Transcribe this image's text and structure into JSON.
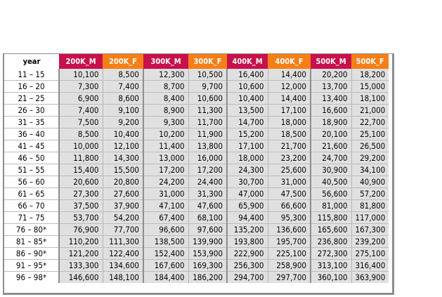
{
  "table": {
    "columns": [
      "year",
      "200K_M",
      "200K_F",
      "300K_M",
      "300K_F",
      "400K_M",
      "400K_F",
      "500K_M",
      "500K_F"
    ],
    "rows": [
      {
        "year": "11 – 15",
        "values": [
          "10,100",
          "8,500",
          "12,300",
          "10,500",
          "16,400",
          "14,400",
          "20,200",
          "18,200"
        ]
      },
      {
        "year": "16 – 20",
        "values": [
          "7,300",
          "7,400",
          "8,700",
          "9,700",
          "10,600",
          "12,000",
          "13,700",
          "15,000"
        ]
      },
      {
        "year": "21 – 25",
        "values": [
          "6,900",
          "8,600",
          "8,400",
          "10,600",
          "10,400",
          "14,400",
          "13,400",
          "18,100"
        ]
      },
      {
        "year": "26 – 30",
        "values": [
          "7,400",
          "9,100",
          "8,900",
          "11,300",
          "13,500",
          "17,100",
          "16,600",
          "21,000"
        ]
      },
      {
        "year": "31 – 35",
        "values": [
          "7,500",
          "9,200",
          "9,300",
          "11,700",
          "14,700",
          "18,000",
          "18,900",
          "22,700"
        ]
      },
      {
        "year": "36 – 40",
        "values": [
          "8,500",
          "10,400",
          "10,200",
          "11,900",
          "15,200",
          "18,500",
          "20,100",
          "25,100"
        ]
      },
      {
        "year": "41 – 45",
        "values": [
          "10,000",
          "12,100",
          "11,400",
          "13,800",
          "17,100",
          "21,700",
          "21,600",
          "26,500"
        ]
      },
      {
        "year": "46 – 50",
        "values": [
          "11,800",
          "14,300",
          "13,000",
          "16,000",
          "18,000",
          "23,200",
          "24,700",
          "29,200"
        ]
      },
      {
        "year": "51 – 55",
        "values": [
          "15,400",
          "15,500",
          "17,200",
          "17,200",
          "24,300",
          "25,600",
          "30,900",
          "34,100"
        ]
      },
      {
        "year": "56 – 60",
        "values": [
          "20,600",
          "20,800",
          "24,200",
          "24,400",
          "30,700",
          "31,000",
          "40,500",
          "40,900"
        ]
      },
      {
        "year": "61 – 65",
        "values": [
          "27,300",
          "27,600",
          "31,000",
          "31,300",
          "47,000",
          "47,500",
          "56,600",
          "57,200"
        ]
      },
      {
        "year": "66 – 70",
        "values": [
          "37,500",
          "37,900",
          "47,100",
          "47,600",
          "65,900",
          "66,600",
          "81,000",
          "81,800"
        ]
      },
      {
        "year": "71 – 75",
        "values": [
          "53,700",
          "54,200",
          "67,400",
          "68,100",
          "94,400",
          "95,300",
          "115,800",
          "117,000"
        ]
      },
      {
        "year": "76 – 80*",
        "values": [
          "76,900",
          "77,700",
          "96,600",
          "97,600",
          "135,200",
          "136,600",
          "165,600",
          "167,300"
        ]
      },
      {
        "year": "81 – 85*",
        "values": [
          "110,200",
          "111,300",
          "138,500",
          "139,900",
          "193,800",
          "195,700",
          "236,800",
          "239,200"
        ]
      },
      {
        "year": "86 – 90*",
        "values": [
          "121,200",
          "122,400",
          "152,400",
          "153,900",
          "222,900",
          "225,100",
          "272,300",
          "275,100"
        ]
      },
      {
        "year": "91 – 95*",
        "values": [
          "133,300",
          "134,600",
          "167,600",
          "169,300",
          "256,300",
          "258,900",
          "313,100",
          "316,400"
        ]
      },
      {
        "year": "96 – 98*",
        "values": [
          "146,600",
          "148,100",
          "184,400",
          "186,200",
          "294,700",
          "297,700",
          "360,100",
          "363,900"
        ]
      }
    ]
  },
  "colors": {
    "male_header": "#c8104a",
    "female_header": "#f57f17",
    "cell_bg": "#e0e0e0",
    "frame": "#8e8e8e"
  }
}
